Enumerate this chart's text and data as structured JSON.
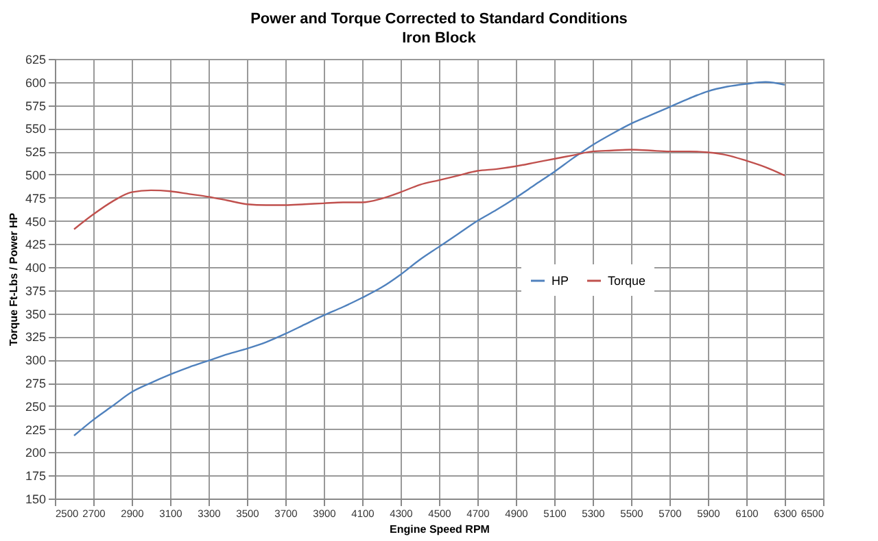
{
  "chart_data": {
    "type": "line",
    "title": "Power and Torque Corrected to Standard Conditions",
    "subtitle": "Iron Block",
    "xlabel": "Engine Speed RPM",
    "ylabel": "Torque Ft-Lbs / Power HP",
    "x": [
      2600,
      2700,
      2800,
      2900,
      3000,
      3100,
      3200,
      3300,
      3400,
      3500,
      3600,
      3700,
      3800,
      3900,
      4000,
      4100,
      4200,
      4300,
      4400,
      4500,
      4600,
      4700,
      4800,
      4900,
      5000,
      5100,
      5200,
      5300,
      5400,
      5500,
      5600,
      5700,
      5800,
      5900,
      6000,
      6100,
      6200,
      6300
    ],
    "series": [
      {
        "name": "HP",
        "color": "#4f81bd",
        "values": [
          218,
          235,
          250,
          265,
          275,
          284,
          292,
          299,
          306,
          312,
          319,
          328,
          338,
          348,
          357,
          367,
          378,
          392,
          408,
          422,
          436,
          450,
          462,
          475,
          489,
          503,
          518,
          532,
          544,
          555,
          564,
          573,
          582,
          590,
          595,
          598,
          600,
          597
        ]
      },
      {
        "name": "Torque",
        "color": "#c0504d",
        "values": [
          441,
          457,
          471,
          481,
          483,
          482,
          479,
          476,
          472,
          468,
          467,
          467,
          468,
          469,
          470,
          470,
          474,
          481,
          489,
          494,
          499,
          504,
          506,
          509,
          513,
          517,
          521,
          525,
          526,
          527,
          526,
          525,
          525,
          524,
          521,
          515,
          508,
          499
        ]
      }
    ],
    "xlim": [
      2500,
      6500
    ],
    "xticks": [
      2500,
      2700,
      2900,
      3100,
      3300,
      3500,
      3700,
      3900,
      4100,
      4300,
      4500,
      4700,
      4900,
      5100,
      5300,
      5500,
      5700,
      5900,
      6100,
      6300,
      6500
    ],
    "ylim": [
      150,
      625
    ],
    "yticks": [
      150,
      175,
      200,
      225,
      250,
      275,
      300,
      325,
      350,
      375,
      400,
      425,
      450,
      475,
      500,
      525,
      550,
      575,
      600,
      625
    ],
    "grid": true,
    "legend": "right",
    "marker": "none",
    "line_style": "solid"
  }
}
